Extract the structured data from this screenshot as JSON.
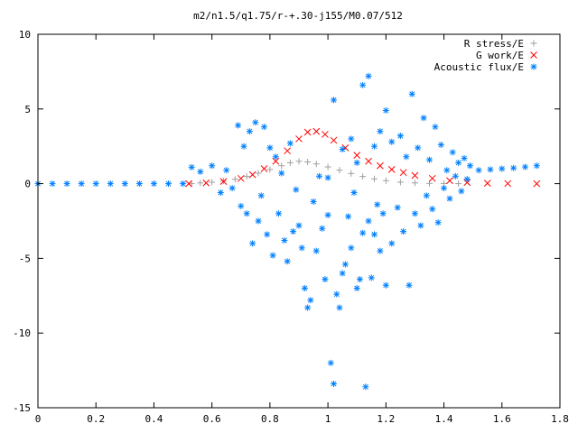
{
  "chart_data": {
    "type": "scatter",
    "title": "m2/n1.5/q1.75/r-+.30-j155/M0.07/512",
    "xlabel": "",
    "ylabel": "",
    "xlim": [
      0,
      1.8
    ],
    "ylim": [
      -15,
      10
    ],
    "xticks": [
      0,
      0.2,
      0.4,
      0.6,
      0.8,
      1,
      1.2,
      1.4,
      1.6,
      1.8
    ],
    "xtick_labels": [
      "0",
      "0.2",
      "0.4",
      "0.6",
      "0.8",
      "1",
      "1.2",
      "1.4",
      "1.6",
      "1.8"
    ],
    "yticks": [
      -15,
      -10,
      -5,
      0,
      5,
      10
    ],
    "ytick_labels": [
      "-15",
      "-10",
      "-5",
      "0",
      "5",
      "10"
    ],
    "grid": false,
    "legend_position": "top-right",
    "series": [
      {
        "name": "R stress/E",
        "marker": "+",
        "color": "#a0a0a0",
        "points": [
          [
            0.53,
            0.0
          ],
          [
            0.56,
            0.05
          ],
          [
            0.6,
            0.1
          ],
          [
            0.64,
            0.18
          ],
          [
            0.68,
            0.3
          ],
          [
            0.72,
            0.48
          ],
          [
            0.76,
            0.7
          ],
          [
            0.8,
            0.95
          ],
          [
            0.84,
            1.2
          ],
          [
            0.87,
            1.4
          ],
          [
            0.9,
            1.5
          ],
          [
            0.93,
            1.45
          ],
          [
            0.96,
            1.32
          ],
          [
            1.0,
            1.12
          ],
          [
            1.04,
            0.9
          ],
          [
            1.08,
            0.68
          ],
          [
            1.12,
            0.48
          ],
          [
            1.16,
            0.32
          ],
          [
            1.2,
            0.2
          ],
          [
            1.25,
            0.1
          ],
          [
            1.3,
            0.05
          ],
          [
            1.35,
            0.02
          ],
          [
            1.4,
            0.01
          ],
          [
            1.45,
            0.0
          ]
        ]
      },
      {
        "name": "G work/E",
        "marker": "x",
        "color": "#ff0000",
        "points": [
          [
            0.52,
            0.0
          ],
          [
            0.58,
            0.05
          ],
          [
            0.64,
            0.15
          ],
          [
            0.7,
            0.35
          ],
          [
            0.74,
            0.6
          ],
          [
            0.78,
            1.0
          ],
          [
            0.82,
            1.5
          ],
          [
            0.86,
            2.2
          ],
          [
            0.9,
            3.0
          ],
          [
            0.93,
            3.45
          ],
          [
            0.96,
            3.5
          ],
          [
            0.99,
            3.3
          ],
          [
            1.02,
            2.9
          ],
          [
            1.06,
            2.4
          ],
          [
            1.1,
            1.9
          ],
          [
            1.14,
            1.5
          ],
          [
            1.18,
            1.2
          ],
          [
            1.22,
            0.95
          ],
          [
            1.26,
            0.75
          ],
          [
            1.3,
            0.55
          ],
          [
            1.36,
            0.35
          ],
          [
            1.42,
            0.2
          ],
          [
            1.48,
            0.08
          ],
          [
            1.55,
            0.03
          ],
          [
            1.62,
            0.01
          ],
          [
            1.72,
            0.0
          ]
        ]
      },
      {
        "name": "Acoustic flux/E",
        "marker": "*",
        "color": "#0080ff",
        "points": [
          [
            0.0,
            0.0
          ],
          [
            0.05,
            0.0
          ],
          [
            0.1,
            0.0
          ],
          [
            0.15,
            0.0
          ],
          [
            0.2,
            0.0
          ],
          [
            0.25,
            0.0
          ],
          [
            0.3,
            0.0
          ],
          [
            0.35,
            0.0
          ],
          [
            0.4,
            0.0
          ],
          [
            0.45,
            0.0
          ],
          [
            0.5,
            0.0
          ],
          [
            0.53,
            1.1
          ],
          [
            0.56,
            0.8
          ],
          [
            0.6,
            1.2
          ],
          [
            0.63,
            -0.6
          ],
          [
            0.65,
            0.9
          ],
          [
            0.67,
            -0.3
          ],
          [
            0.69,
            3.9
          ],
          [
            0.7,
            -1.5
          ],
          [
            0.71,
            2.5
          ],
          [
            0.72,
            -2.0
          ],
          [
            0.73,
            3.5
          ],
          [
            0.74,
            -4.0
          ],
          [
            0.75,
            4.1
          ],
          [
            0.76,
            -2.5
          ],
          [
            0.77,
            -0.8
          ],
          [
            0.78,
            3.8
          ],
          [
            0.79,
            -3.4
          ],
          [
            0.8,
            2.4
          ],
          [
            0.81,
            -4.8
          ],
          [
            0.82,
            1.8
          ],
          [
            0.83,
            -2.0
          ],
          [
            0.84,
            0.7
          ],
          [
            0.85,
            -3.8
          ],
          [
            0.86,
            -5.2
          ],
          [
            0.87,
            2.7
          ],
          [
            0.88,
            -3.2
          ],
          [
            0.89,
            -0.4
          ],
          [
            0.9,
            -2.8
          ],
          [
            0.91,
            -4.3
          ],
          [
            0.92,
            -7.0
          ],
          [
            0.93,
            -8.3
          ],
          [
            0.94,
            -7.8
          ],
          [
            0.95,
            -1.2
          ],
          [
            0.96,
            -4.5
          ],
          [
            0.97,
            0.5
          ],
          [
            0.98,
            -3.0
          ],
          [
            0.99,
            -6.4
          ],
          [
            1.0,
            -2.1
          ],
          [
            1.01,
            -12.0
          ],
          [
            1.02,
            -13.4
          ],
          [
            1.03,
            -7.4
          ],
          [
            1.04,
            -8.3
          ],
          [
            1.05,
            -6.0
          ],
          [
            1.06,
            -5.4
          ],
          [
            1.07,
            -2.2
          ],
          [
            1.08,
            -4.3
          ],
          [
            1.09,
            -0.6
          ],
          [
            1.1,
            -7.0
          ],
          [
            1.11,
            -6.4
          ],
          [
            1.12,
            -3.3
          ],
          [
            1.13,
            -13.6
          ],
          [
            1.14,
            -2.5
          ],
          [
            1.15,
            -6.3
          ],
          [
            1.16,
            -3.4
          ],
          [
            1.17,
            -1.4
          ],
          [
            1.18,
            -4.5
          ],
          [
            1.19,
            -2.0
          ],
          [
            1.2,
            -6.8
          ],
          [
            1.22,
            -4.0
          ],
          [
            1.24,
            -1.6
          ],
          [
            1.26,
            -3.2
          ],
          [
            1.28,
            -6.8
          ],
          [
            1.3,
            -2.0
          ],
          [
            1.32,
            -2.8
          ],
          [
            1.34,
            -0.8
          ],
          [
            1.36,
            -1.7
          ],
          [
            1.38,
            -2.6
          ],
          [
            1.4,
            -0.3
          ],
          [
            1.42,
            -1.0
          ],
          [
            1.44,
            0.5
          ],
          [
            1.46,
            -0.5
          ],
          [
            1.48,
            0.3
          ],
          [
            1.0,
            0.4
          ],
          [
            1.02,
            5.6
          ],
          [
            1.05,
            2.3
          ],
          [
            1.08,
            3.0
          ],
          [
            1.1,
            1.4
          ],
          [
            1.12,
            6.6
          ],
          [
            1.14,
            7.2
          ],
          [
            1.16,
            2.5
          ],
          [
            1.18,
            3.5
          ],
          [
            1.2,
            4.9
          ],
          [
            1.22,
            2.8
          ],
          [
            1.25,
            3.2
          ],
          [
            1.27,
            1.8
          ],
          [
            1.29,
            6.0
          ],
          [
            1.31,
            2.4
          ],
          [
            1.33,
            4.4
          ],
          [
            1.35,
            1.6
          ],
          [
            1.37,
            3.8
          ],
          [
            1.39,
            2.6
          ],
          [
            1.41,
            0.9
          ],
          [
            1.43,
            2.1
          ],
          [
            1.45,
            1.4
          ],
          [
            1.47,
            1.7
          ],
          [
            1.49,
            1.2
          ],
          [
            1.52,
            0.9
          ],
          [
            1.56,
            0.95
          ],
          [
            1.6,
            1.0
          ],
          [
            1.64,
            1.05
          ],
          [
            1.68,
            1.12
          ],
          [
            1.72,
            1.2
          ]
        ]
      }
    ]
  }
}
